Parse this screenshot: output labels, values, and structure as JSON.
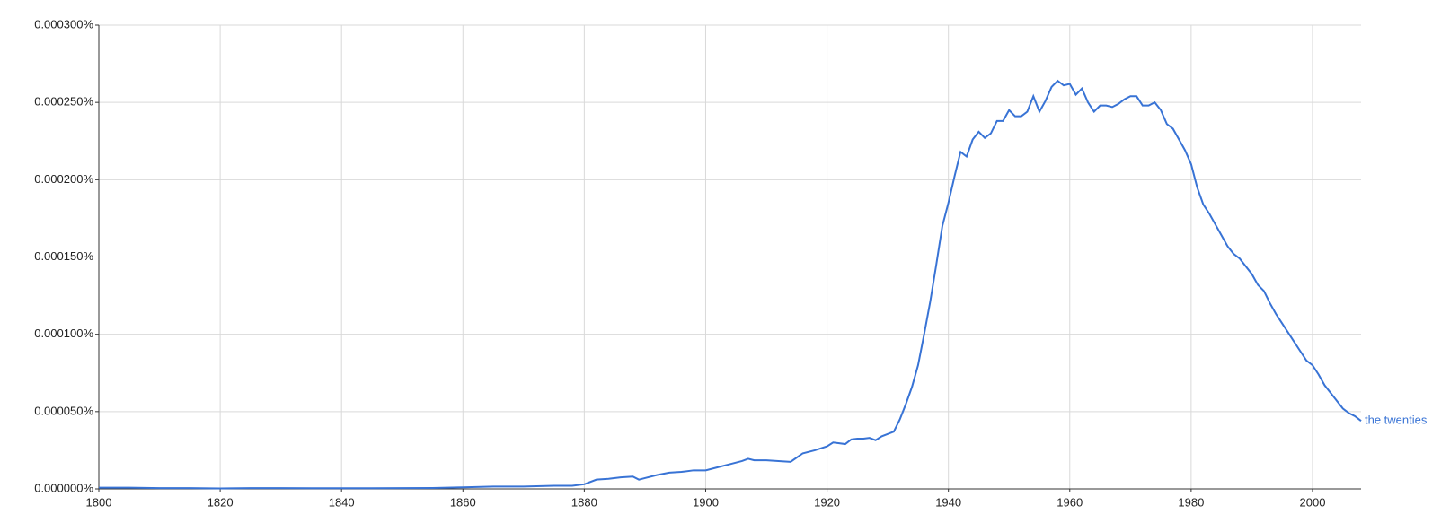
{
  "chart_data": {
    "type": "line",
    "x": [
      1800,
      1805,
      1810,
      1815,
      1820,
      1825,
      1830,
      1835,
      1840,
      1845,
      1850,
      1855,
      1860,
      1865,
      1870,
      1875,
      1878,
      1880,
      1882,
      1884,
      1886,
      1888,
      1889,
      1890,
      1892,
      1894,
      1896,
      1898,
      1900,
      1902,
      1904,
      1906,
      1907,
      1908,
      1910,
      1912,
      1914,
      1916,
      1918,
      1920,
      1921,
      1922,
      1923,
      1924,
      1925,
      1926,
      1927,
      1928,
      1929,
      1930,
      1931,
      1932,
      1933,
      1934,
      1935,
      1936,
      1937,
      1938,
      1939,
      1940,
      1941,
      1942,
      1943,
      1944,
      1945,
      1946,
      1947,
      1948,
      1949,
      1950,
      1951,
      1952,
      1953,
      1954,
      1955,
      1956,
      1957,
      1958,
      1959,
      1960,
      1961,
      1962,
      1963,
      1964,
      1965,
      1966,
      1967,
      1968,
      1969,
      1970,
      1971,
      1972,
      1973,
      1974,
      1975,
      1976,
      1977,
      1978,
      1979,
      1980,
      1981,
      1982,
      1983,
      1984,
      1985,
      1986,
      1987,
      1988,
      1989,
      1990,
      1991,
      1992,
      1993,
      1994,
      1995,
      1996,
      1997,
      1998,
      1999,
      2000,
      2001,
      2002,
      2003,
      2004,
      2005,
      2006,
      2007,
      2008
    ],
    "series": [
      {
        "name": "the twenties",
        "color": "#3873d5",
        "values": [
          8e-07,
          8e-07,
          5e-07,
          5e-07,
          3e-07,
          5e-07,
          5e-07,
          4e-07,
          4e-07,
          4e-07,
          5e-07,
          6e-07,
          1e-06,
          1.5e-06,
          1.5e-06,
          2e-06,
          2e-06,
          3e-06,
          6e-06,
          6.5e-06,
          7.5e-06,
          8e-06,
          6e-06,
          7e-06,
          9e-06,
          1.05e-05,
          1.1e-05,
          1.2e-05,
          1.2e-05,
          1.4e-05,
          1.6e-05,
          1.8e-05,
          1.95e-05,
          1.85e-05,
          1.85e-05,
          1.8e-05,
          1.75e-05,
          2.3e-05,
          2.5e-05,
          2.75e-05,
          3e-05,
          2.95e-05,
          2.9e-05,
          3.2e-05,
          3.25e-05,
          3.25e-05,
          3.3e-05,
          3.15e-05,
          3.4e-05,
          3.55e-05,
          3.7e-05,
          4.5e-05,
          5.5e-05,
          6.6e-05,
          8e-05,
          0.0001,
          0.000121,
          0.000145,
          0.00017,
          0.000185,
          0.000202,
          0.000218,
          0.000215,
          0.000226,
          0.000231,
          0.000227,
          0.00023,
          0.000238,
          0.000238,
          0.000245,
          0.000241,
          0.000241,
          0.000244,
          0.000254,
          0.000244,
          0.000251,
          0.00026,
          0.000264,
          0.000261,
          0.000262,
          0.000255,
          0.000259,
          0.00025,
          0.000244,
          0.000248,
          0.000248,
          0.000247,
          0.000249,
          0.000252,
          0.000254,
          0.000254,
          0.000248,
          0.000248,
          0.00025,
          0.000245,
          0.000236,
          0.000233,
          0.000226,
          0.000219,
          0.00021,
          0.000195,
          0.000184,
          0.000178,
          0.000171,
          0.000164,
          0.000157,
          0.000152,
          0.000149,
          0.000144,
          0.000139,
          0.000132,
          0.000128,
          0.00012,
          0.000113,
          0.000107,
          0.000101,
          9.5e-05,
          8.9e-05,
          8.3e-05,
          8e-05,
          7.4e-05,
          6.7e-05,
          6.2e-05,
          5.7e-05,
          5.2e-05,
          4.9e-05,
          4.7e-05,
          4.4e-05
        ]
      }
    ],
    "xlim": [
      1800,
      2008
    ],
    "xticks": [
      1800,
      1820,
      1840,
      1860,
      1880,
      1900,
      1920,
      1940,
      1960,
      1980,
      2000
    ],
    "ylim": [
      0,
      0.0003
    ],
    "yticks": [
      {
        "value": 0,
        "label": "0.000000%"
      },
      {
        "value": 5e-05,
        "label": "0.000050%"
      },
      {
        "value": 0.0001,
        "label": "0.000100%"
      },
      {
        "value": 0.00015,
        "label": "0.000150%"
      },
      {
        "value": 0.0002,
        "label": "0.000200%"
      },
      {
        "value": 0.00025,
        "label": "0.000250%"
      },
      {
        "value": 0.0003,
        "label": "0.000300%"
      }
    ],
    "grid": true
  }
}
